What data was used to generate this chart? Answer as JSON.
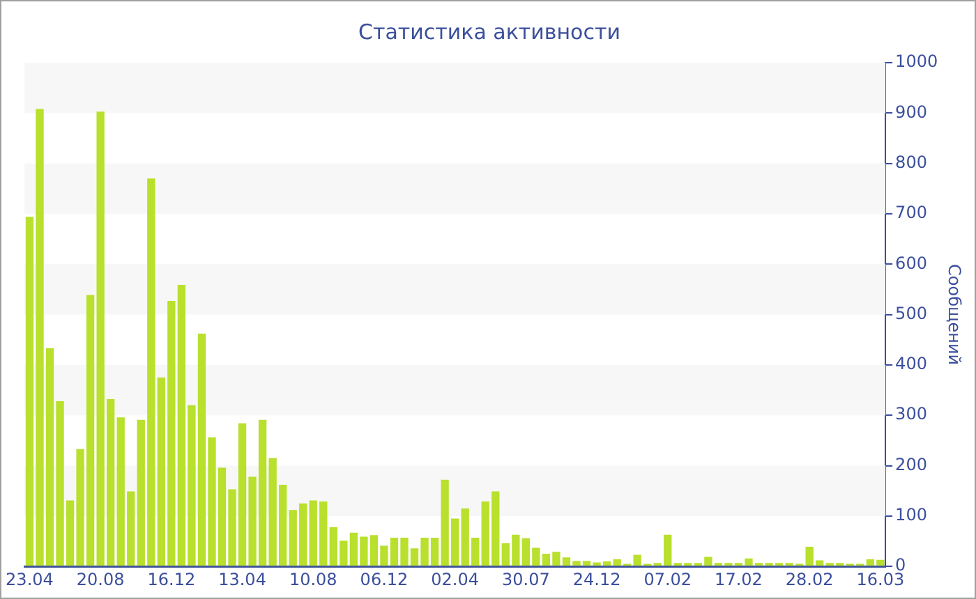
{
  "chart_data": {
    "type": "bar",
    "title": "Статистика активности",
    "ylabel": "Сообщений",
    "categories": [
      "23.04",
      null,
      null,
      null,
      null,
      null,
      null,
      "20.08",
      null,
      null,
      null,
      null,
      null,
      null,
      "16.12",
      null,
      null,
      null,
      null,
      null,
      null,
      "13.04",
      null,
      null,
      null,
      null,
      null,
      null,
      "10.08",
      null,
      null,
      null,
      null,
      null,
      null,
      "06.12",
      null,
      null,
      null,
      null,
      null,
      null,
      "02.04",
      null,
      null,
      null,
      null,
      null,
      null,
      "30.07",
      null,
      null,
      null,
      null,
      null,
      null,
      "24.12",
      null,
      null,
      null,
      null,
      null,
      null,
      "07.02",
      null,
      null,
      null,
      null,
      null,
      null,
      "17.02",
      null,
      null,
      null,
      null,
      null,
      null,
      "28.02",
      null,
      null,
      null,
      null,
      null,
      null,
      "16.03"
    ],
    "values": [
      694,
      908,
      433,
      328,
      131,
      233,
      539,
      903,
      332,
      296,
      149,
      291,
      770,
      375,
      527,
      559,
      320,
      462,
      256,
      196,
      153,
      284,
      178,
      291,
      215,
      162,
      112,
      125,
      131,
      129,
      78,
      51,
      67,
      59,
      62,
      41,
      57,
      57,
      36,
      57,
      57,
      172,
      95,
      115,
      57,
      129,
      149,
      46,
      63,
      56,
      37,
      25,
      29,
      18,
      11,
      11,
      8,
      10,
      14,
      5,
      23,
      5,
      7,
      63,
      7,
      7,
      7,
      19,
      7,
      7,
      7,
      16,
      7,
      7,
      7,
      7,
      5,
      39,
      12,
      7,
      7,
      5,
      5,
      14,
      13
    ],
    "color": "#b8e02c",
    "ylim": [
      0,
      1000
    ],
    "yticks": [
      0,
      100,
      200,
      300,
      400,
      500,
      600,
      700,
      800,
      900,
      1000
    ],
    "bands": [
      {
        "axis": "y",
        "from": 100,
        "to": 200,
        "color": "#f7f7f7"
      },
      {
        "axis": "y",
        "from": 300,
        "to": 400,
        "color": "#f7f7f7"
      },
      {
        "axis": "y",
        "from": 500,
        "to": 600,
        "color": "#f7f7f7"
      },
      {
        "axis": "y",
        "from": 700,
        "to": 800,
        "color": "#f7f7f7"
      },
      {
        "axis": "y",
        "from": 900,
        "to": 1000,
        "color": "#f7f7f7"
      }
    ]
  }
}
